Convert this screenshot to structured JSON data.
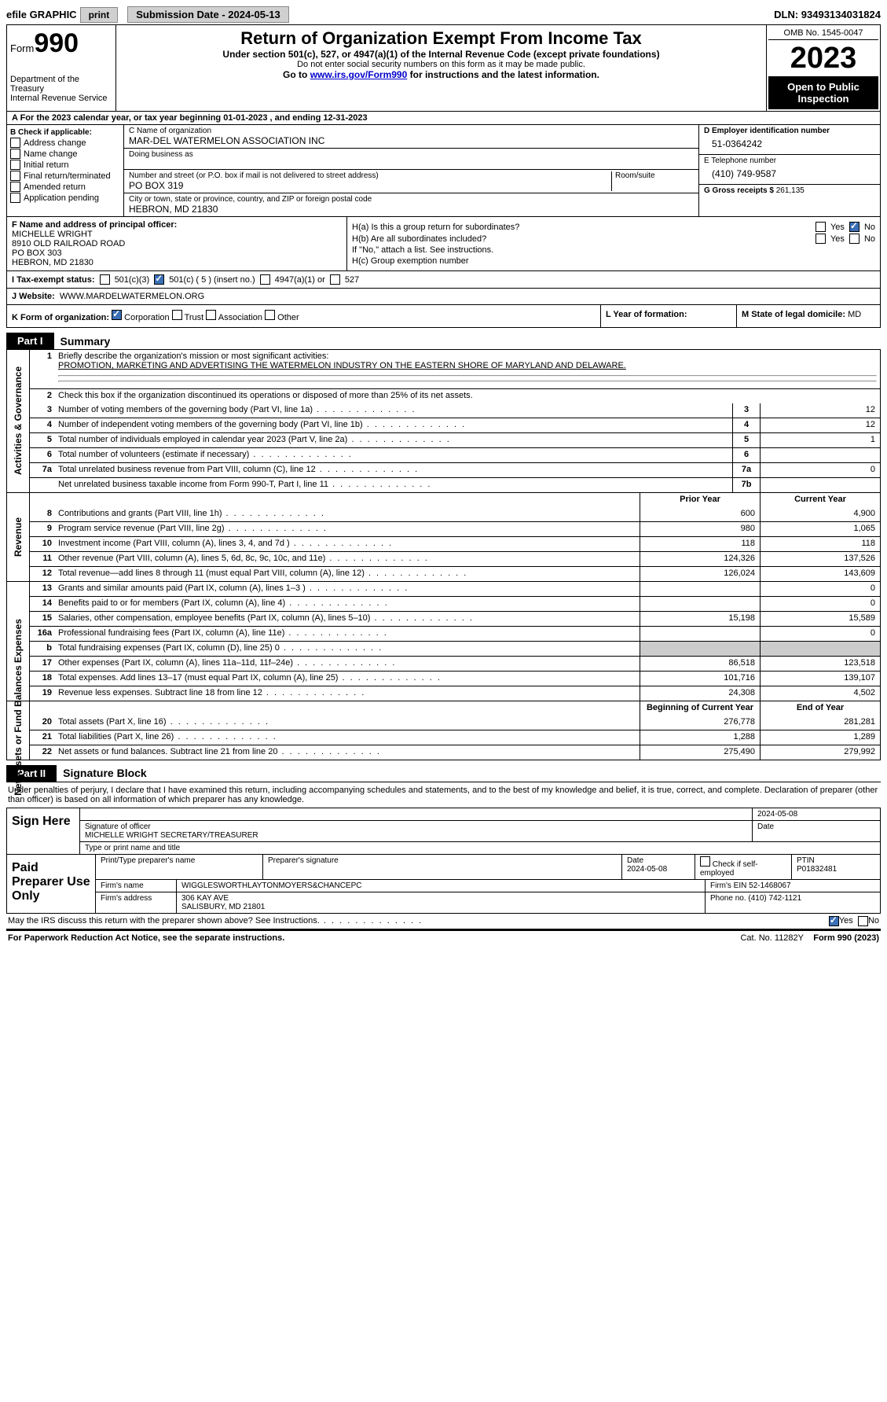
{
  "topbar": {
    "efile": "efile GRAPHIC",
    "print": "print",
    "submission": "Submission Date - 2024-05-13",
    "dln": "DLN: 93493134031824"
  },
  "header": {
    "form_prefix": "Form",
    "form_num": "990",
    "title": "Return of Organization Exempt From Income Tax",
    "sub1": "Under section 501(c), 527, or 4947(a)(1) of the Internal Revenue Code (except private foundations)",
    "sub2": "Do not enter social security numbers on this form as it may be made public.",
    "sub3_pre": "Go to ",
    "sub3_link": "www.irs.gov/Form990",
    "sub3_post": " for instructions and the latest information.",
    "dept": "Department of the Treasury\nInternal Revenue Service",
    "omb": "OMB No. 1545-0047",
    "year": "2023",
    "open": "Open to Public Inspection"
  },
  "rowA": "A For the 2023 calendar year, or tax year beginning 01-01-2023   , and ending 12-31-2023",
  "boxB": {
    "title": "B Check if applicable:",
    "items": [
      "Address change",
      "Name change",
      "Initial return",
      "Final return/terminated",
      "Amended return",
      "Application pending"
    ]
  },
  "boxC": {
    "name_lbl": "C Name of organization",
    "name": "MAR-DEL WATERMELON ASSOCIATION INC",
    "dba_lbl": "Doing business as",
    "addr_lbl": "Number and street (or P.O. box if mail is not delivered to street address)",
    "addr": "PO BOX 319",
    "room_lbl": "Room/suite",
    "city_lbl": "City or town, state or province, country, and ZIP or foreign postal code",
    "city": "HEBRON, MD  21830"
  },
  "boxD": {
    "lbl": "D Employer identification number",
    "val": "51-0364242"
  },
  "boxE": {
    "lbl": "E Telephone number",
    "val": "(410) 749-9587"
  },
  "boxG": {
    "lbl": "G Gross receipts $",
    "val": "261,135"
  },
  "boxF": {
    "lbl": "F  Name and address of principal officer:",
    "line1": "MICHELLE WRIGHT",
    "line2": "8910 OLD RAILROAD ROAD",
    "line3": "PO BOX 303",
    "line4": "HEBRON, MD  21830"
  },
  "boxH": {
    "a_lbl": "H(a)  Is this a group return for subordinates?",
    "b_lbl": "H(b)  Are all subordinates included?",
    "note": "If \"No,\" attach a list. See instructions.",
    "c_lbl": "H(c)  Group exemption number",
    "yes": "Yes",
    "no": "No"
  },
  "rowI": {
    "lbl": "I   Tax-exempt status:",
    "o1": "501(c)(3)",
    "o2": "501(c) ( 5 ) (insert no.)",
    "o3": "4947(a)(1) or",
    "o4": "527"
  },
  "rowJ": {
    "lbl": "J   Website:",
    "val": "WWW.MARDELWATERMELON.ORG"
  },
  "rowK": {
    "lbl": "K Form of organization:",
    "o1": "Corporation",
    "o2": "Trust",
    "o3": "Association",
    "o4": "Other"
  },
  "rowL": {
    "lbl": "L Year of formation:"
  },
  "rowM": {
    "lbl": "M State of legal domicile:",
    "val": "MD"
  },
  "part1": {
    "tag": "Part I",
    "title": "Summary"
  },
  "governance": {
    "label": "Activities & Governance",
    "l1_lbl": "Briefly describe the organization's mission or most significant activities:",
    "l1_val": "PROMOTION, MARKETING AND ADVERTISING THE WATERMELON INDUSTRY ON THE EASTERN SHORE OF MARYLAND AND DELAWARE.",
    "l2": "Check this box      if the organization discontinued its operations or disposed of more than 25% of its net assets.",
    "rows": [
      {
        "n": "3",
        "d": "Number of voting members of the governing body (Part VI, line 1a)",
        "box": "3",
        "v": "12"
      },
      {
        "n": "4",
        "d": "Number of independent voting members of the governing body (Part VI, line 1b)",
        "box": "4",
        "v": "12"
      },
      {
        "n": "5",
        "d": "Total number of individuals employed in calendar year 2023 (Part V, line 2a)",
        "box": "5",
        "v": "1"
      },
      {
        "n": "6",
        "d": "Total number of volunteers (estimate if necessary)",
        "box": "6",
        "v": ""
      },
      {
        "n": "7a",
        "d": "Total unrelated business revenue from Part VIII, column (C), line 12",
        "box": "7a",
        "v": "0"
      },
      {
        "n": "",
        "d": "Net unrelated business taxable income from Form 990-T, Part I, line 11",
        "box": "7b",
        "v": ""
      }
    ]
  },
  "revenue": {
    "label": "Revenue",
    "hdr_prior": "Prior Year",
    "hdr_curr": "Current Year",
    "rows": [
      {
        "n": "8",
        "d": "Contributions and grants (Part VIII, line 1h)",
        "p": "600",
        "c": "4,900"
      },
      {
        "n": "9",
        "d": "Program service revenue (Part VIII, line 2g)",
        "p": "980",
        "c": "1,065"
      },
      {
        "n": "10",
        "d": "Investment income (Part VIII, column (A), lines 3, 4, and 7d )",
        "p": "118",
        "c": "118"
      },
      {
        "n": "11",
        "d": "Other revenue (Part VIII, column (A), lines 5, 6d, 8c, 9c, 10c, and 11e)",
        "p": "124,326",
        "c": "137,526"
      },
      {
        "n": "12",
        "d": "Total revenue—add lines 8 through 11 (must equal Part VIII, column (A), line 12)",
        "p": "126,024",
        "c": "143,609"
      }
    ]
  },
  "expenses": {
    "label": "Expenses",
    "rows": [
      {
        "n": "13",
        "d": "Grants and similar amounts paid (Part IX, column (A), lines 1–3 )",
        "p": "",
        "c": "0"
      },
      {
        "n": "14",
        "d": "Benefits paid to or for members (Part IX, column (A), line 4)",
        "p": "",
        "c": "0"
      },
      {
        "n": "15",
        "d": "Salaries, other compensation, employee benefits (Part IX, column (A), lines 5–10)",
        "p": "15,198",
        "c": "15,589"
      },
      {
        "n": "16a",
        "d": "Professional fundraising fees (Part IX, column (A), line 11e)",
        "p": "",
        "c": "0"
      },
      {
        "n": "b",
        "d": "Total fundraising expenses (Part IX, column (D), line 25) 0",
        "p": "SHADE",
        "c": "SHADE"
      },
      {
        "n": "17",
        "d": "Other expenses (Part IX, column (A), lines 11a–11d, 11f–24e)",
        "p": "86,518",
        "c": "123,518"
      },
      {
        "n": "18",
        "d": "Total expenses. Add lines 13–17 (must equal Part IX, column (A), line 25)",
        "p": "101,716",
        "c": "139,107"
      },
      {
        "n": "19",
        "d": "Revenue less expenses. Subtract line 18 from line 12",
        "p": "24,308",
        "c": "4,502"
      }
    ]
  },
  "netassets": {
    "label": "Net Assets or Fund Balances",
    "hdr_prior": "Beginning of Current Year",
    "hdr_curr": "End of Year",
    "rows": [
      {
        "n": "20",
        "d": "Total assets (Part X, line 16)",
        "p": "276,778",
        "c": "281,281"
      },
      {
        "n": "21",
        "d": "Total liabilities (Part X, line 26)",
        "p": "1,288",
        "c": "1,289"
      },
      {
        "n": "22",
        "d": "Net assets or fund balances. Subtract line 21 from line 20",
        "p": "275,490",
        "c": "279,992"
      }
    ]
  },
  "part2": {
    "tag": "Part II",
    "title": "Signature Block"
  },
  "sig_intro": "Under penalties of perjury, I declare that I have examined this return, including accompanying schedules and statements, and to the best of my knowledge and belief, it is true, correct, and complete. Declaration of preparer (other than officer) is based on all information of which preparer has any knowledge.",
  "sign": {
    "left": "Sign Here",
    "date": "2024-05-08",
    "sig_lbl": "Signature of officer",
    "name": "MICHELLE WRIGHT  SECRETARY/TREASURER",
    "type_lbl": "Type or print name and title",
    "date_lbl": "Date"
  },
  "paid": {
    "left": "Paid Preparer Use Only",
    "h1": "Print/Type preparer's name",
    "h2": "Preparer's signature",
    "h3": "Date",
    "h3v": "2024-05-08",
    "h4": "Check      if self-employed",
    "h5": "PTIN",
    "h5v": "P01832481",
    "firm_lbl": "Firm's name",
    "firm": "WIGGLESWORTHLAYTONMOYERS&CHANCEPC",
    "ein_lbl": "Firm's EIN",
    "ein": "52-1468067",
    "addr_lbl": "Firm's address",
    "addr1": "306 KAY AVE",
    "addr2": "SALISBURY, MD  21801",
    "phone_lbl": "Phone no.",
    "phone": "(410) 742-1121"
  },
  "discuss": {
    "q": "May the IRS discuss this return with the preparer shown above? See Instructions.",
    "yes": "Yes",
    "no": "No"
  },
  "footer": {
    "l": "For Paperwork Reduction Act Notice, see the separate instructions.",
    "m": "Cat. No. 11282Y",
    "r": "Form 990 (2023)"
  }
}
